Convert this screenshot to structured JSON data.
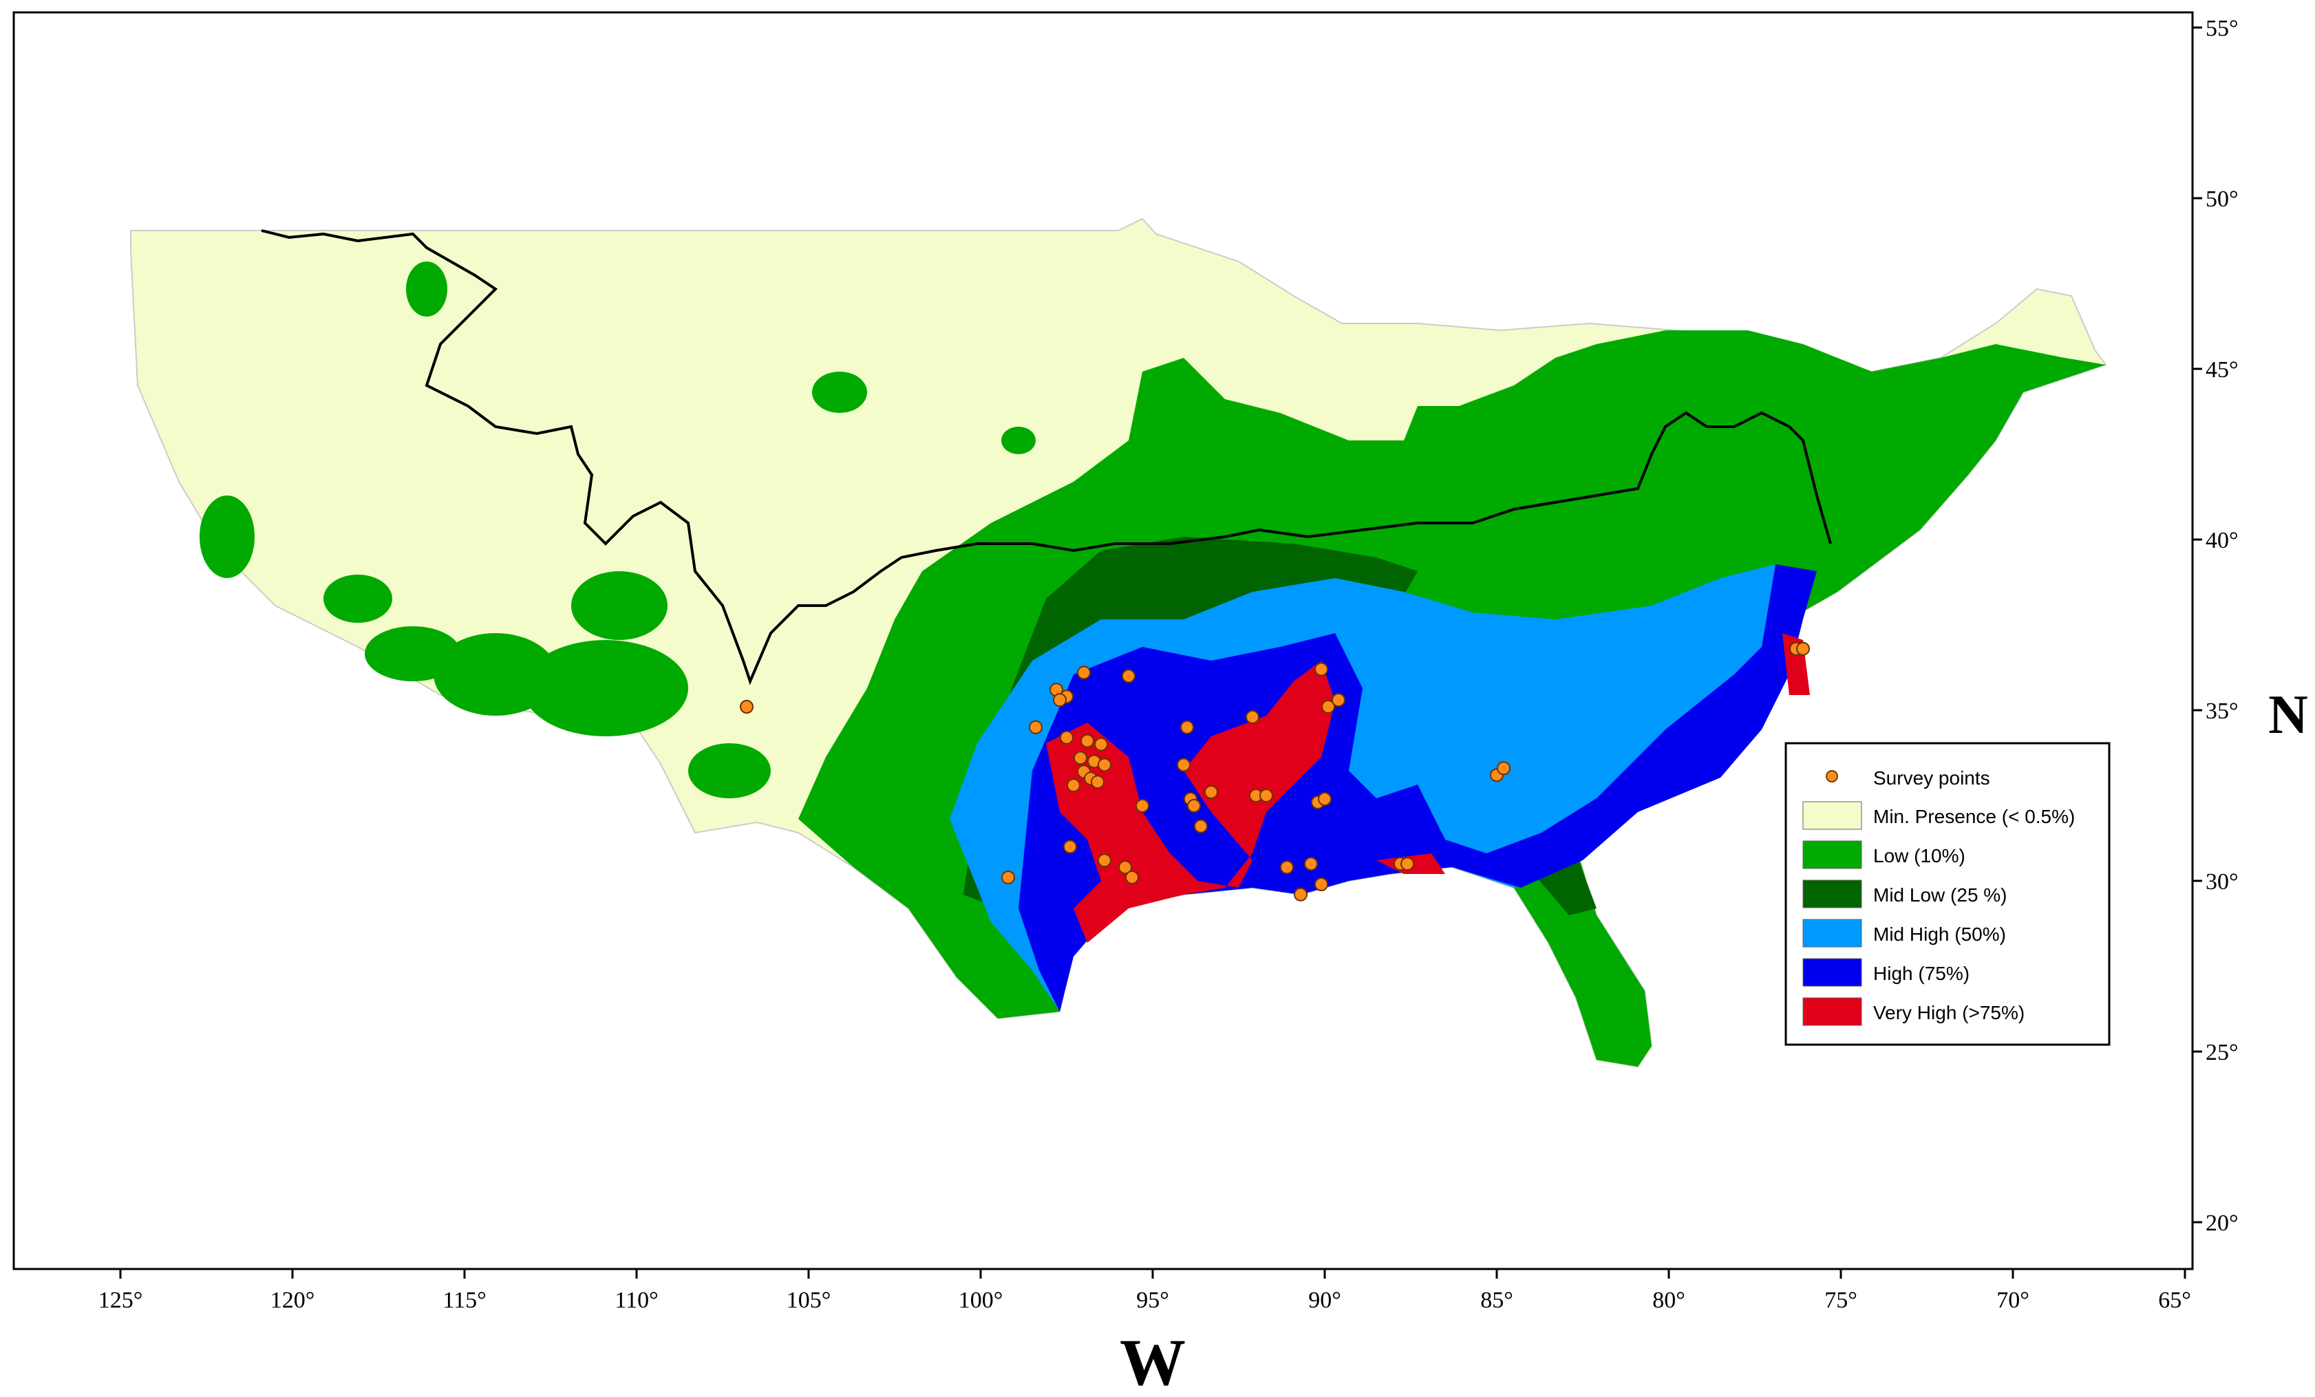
{
  "axes": {
    "x_label": "W",
    "y_label": "N",
    "lon_ticks": [
      "125°",
      "120°",
      "115°",
      "110°",
      "105°",
      "100°",
      "95°",
      "90°",
      "85°",
      "80°",
      "75°",
      "70°",
      "65°"
    ],
    "lat_ticks": [
      "55°",
      "50°",
      "45°",
      "40°",
      "35°",
      "30°",
      "25°",
      "20°"
    ]
  },
  "legend": {
    "items": [
      {
        "label": "Survey points",
        "type": "point",
        "color": "#ff8c1a"
      },
      {
        "label": "Min. Presence (< 0.5%)",
        "type": "swatch",
        "color": "#f4fccb"
      },
      {
        "label": "Low (10%)",
        "type": "swatch",
        "color": "#00aa00"
      },
      {
        "label": "Mid Low (25 %)",
        "type": "swatch",
        "color": "#006400"
      },
      {
        "label": "Mid High (50%)",
        "type": "swatch",
        "color": "#0099ff"
      },
      {
        "label": "High (75%)",
        "type": "swatch",
        "color": "#0000ee"
      },
      {
        "label": "Very High (>75%)",
        "type": "swatch",
        "color": "#e0001a"
      }
    ]
  },
  "survey_points": [
    {
      "lon": -106.8,
      "lat": 35.1
    },
    {
      "lon": -97.8,
      "lat": 35.6
    },
    {
      "lon": -97.5,
      "lat": 35.4
    },
    {
      "lon": -97.7,
      "lat": 35.3
    },
    {
      "lon": -97.0,
      "lat": 36.1
    },
    {
      "lon": -95.7,
      "lat": 36.0
    },
    {
      "lon": -98.4,
      "lat": 34.5
    },
    {
      "lon": -97.5,
      "lat": 34.2
    },
    {
      "lon": -96.9,
      "lat": 34.1
    },
    {
      "lon": -96.5,
      "lat": 34.0
    },
    {
      "lon": -97.1,
      "lat": 33.6
    },
    {
      "lon": -96.7,
      "lat": 33.5
    },
    {
      "lon": -96.4,
      "lat": 33.4
    },
    {
      "lon": -97.0,
      "lat": 33.2
    },
    {
      "lon": -96.8,
      "lat": 33.0
    },
    {
      "lon": -97.3,
      "lat": 32.8
    },
    {
      "lon": -96.6,
      "lat": 32.9
    },
    {
      "lon": -95.3,
      "lat": 32.2
    },
    {
      "lon": -97.4,
      "lat": 31.0
    },
    {
      "lon": -96.4,
      "lat": 30.6
    },
    {
      "lon": -95.8,
      "lat": 30.4
    },
    {
      "lon": -95.6,
      "lat": 30.1
    },
    {
      "lon": -99.2,
      "lat": 30.1
    },
    {
      "lon": -94.0,
      "lat": 34.5
    },
    {
      "lon": -92.1,
      "lat": 34.8
    },
    {
      "lon": -94.1,
      "lat": 33.4
    },
    {
      "lon": -93.3,
      "lat": 32.6
    },
    {
      "lon": -93.9,
      "lat": 32.4
    },
    {
      "lon": -93.8,
      "lat": 32.2
    },
    {
      "lon": -93.6,
      "lat": 31.6
    },
    {
      "lon": -92.0,
      "lat": 32.5
    },
    {
      "lon": -91.7,
      "lat": 32.5
    },
    {
      "lon": -90.2,
      "lat": 32.3
    },
    {
      "lon": -90.0,
      "lat": 32.4
    },
    {
      "lon": -89.9,
      "lat": 35.1
    },
    {
      "lon": -89.6,
      "lat": 35.3
    },
    {
      "lon": -90.1,
      "lat": 36.2
    },
    {
      "lon": -91.1,
      "lat": 30.4
    },
    {
      "lon": -90.4,
      "lat": 30.5
    },
    {
      "lon": -90.7,
      "lat": 29.6
    },
    {
      "lon": -90.1,
      "lat": 29.9
    },
    {
      "lon": -87.8,
      "lat": 30.5
    },
    {
      "lon": -87.6,
      "lat": 30.5
    },
    {
      "lon": -85.0,
      "lat": 33.1
    },
    {
      "lon": -84.8,
      "lat": 33.3
    },
    {
      "lon": -76.3,
      "lat": 36.8
    },
    {
      "lon": -76.1,
      "lat": 36.8
    }
  ]
}
